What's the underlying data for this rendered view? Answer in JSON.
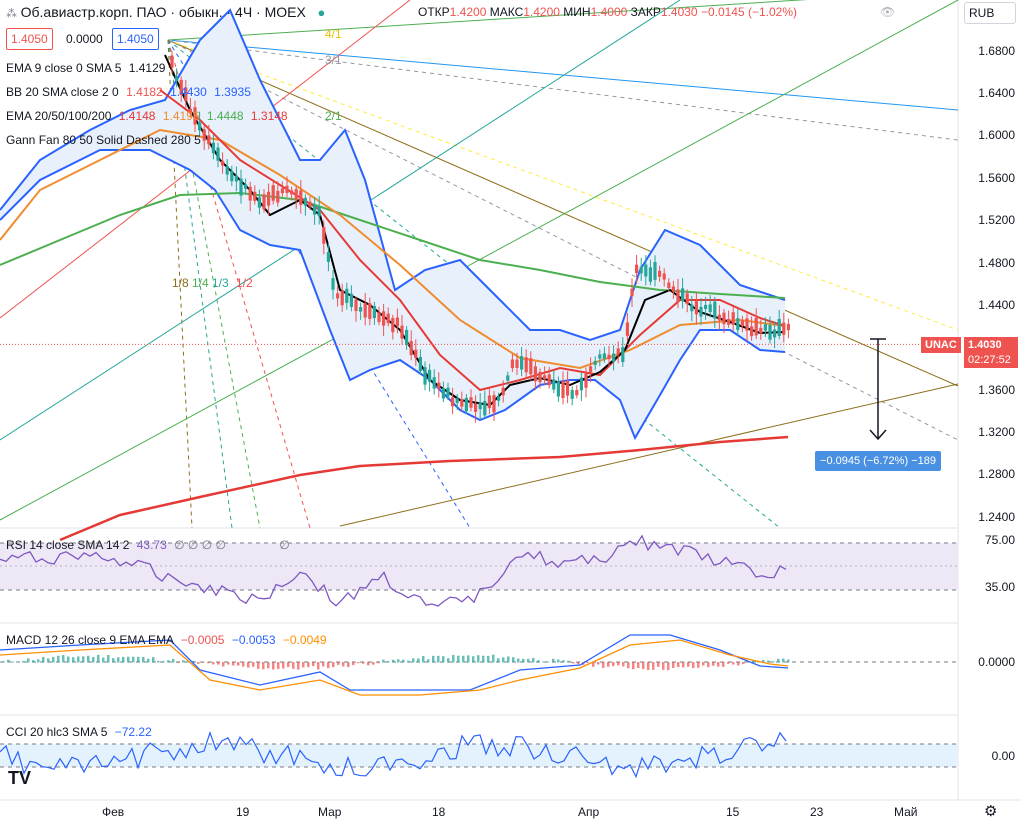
{
  "header": {
    "symbol": "Об.авиастр.корп. ПАО · обыкн. · 4Ч · MOEX",
    "open_label": "ОТКР",
    "open": "1.4200",
    "high_label": "МАКС",
    "high": "1.4200",
    "low_label": "МИН",
    "low": "1.4000",
    "close_label": "ЗАКР",
    "close": "1.4030",
    "change": "−0.0145 (−1.02%)",
    "currency": "RUB"
  },
  "order": {
    "bid": "1.4050",
    "spread": "0.0000",
    "ask": "1.4050"
  },
  "indicators": {
    "ema": {
      "label": "EMA 9 close 0 SMA 5",
      "v1": "1.4129"
    },
    "bb": {
      "label": "BB 20 SMA close 2 0",
      "v1": "1.4182",
      "v2": "1.4430",
      "v3": "1.3935"
    },
    "emas": {
      "label": "EMA 20/50/100/200",
      "v1": "1.4148",
      "v2": "1.4196",
      "v3": "1.4448",
      "v4": "1.3148"
    },
    "gann": {
      "label": "Gann Fan 80 50 Solid Dashed 280 5"
    },
    "rsi": {
      "label": "RSI 14 close SMA 14 2",
      "v1": "43.73",
      "v2": "∅ ∅ ∅ ∅",
      "v3": "∅"
    },
    "macd": {
      "label": "MACD 12 26 close 9 EMA EMA",
      "v1": "−0.0005",
      "v2": "−0.0053",
      "v3": "−0.0049"
    },
    "cci": {
      "label": "CCI 20 hlc3 SMA 5",
      "v1": "−72.22"
    }
  },
  "gann_labels": [
    "4/1",
    "3/1",
    "2/1",
    "1/8",
    "1/4",
    "1/3",
    "1/2"
  ],
  "price_scale": [
    "1.6800",
    "1.6400",
    "1.6000",
    "1.5600",
    "1.5200",
    "1.4800",
    "1.4400",
    "1.3600",
    "1.3200",
    "1.2800",
    "1.2400"
  ],
  "rsi_scale": [
    "75.00",
    "35.00"
  ],
  "macd_scale": [
    "0.0000"
  ],
  "cci_scale": [
    "0.00"
  ],
  "last_price": {
    "tag": "UNAC",
    "price": "1.4030",
    "countdown": "02:27:52"
  },
  "measure": {
    "label": "−0.0945 (−6.72%) −189"
  },
  "dates": [
    "Фев",
    "19",
    "Мар",
    "18",
    "Апр",
    "15",
    "23",
    "Май"
  ],
  "colors": {
    "up": "#26a69a",
    "down": "#ef5350",
    "bb": "#2962ff",
    "bb_fill": "#e8f0fb",
    "ema9": "#000000",
    "ema20": "#e53935",
    "ema50": "#ef8c2e",
    "ema100": "#4caf50",
    "ema200": "#e53935",
    "rsi": "#7e57c2",
    "rsi_fill": "#ede7f6",
    "macd": "#2962ff",
    "signal": "#ff8f00",
    "cci": "#2962ff"
  }
}
